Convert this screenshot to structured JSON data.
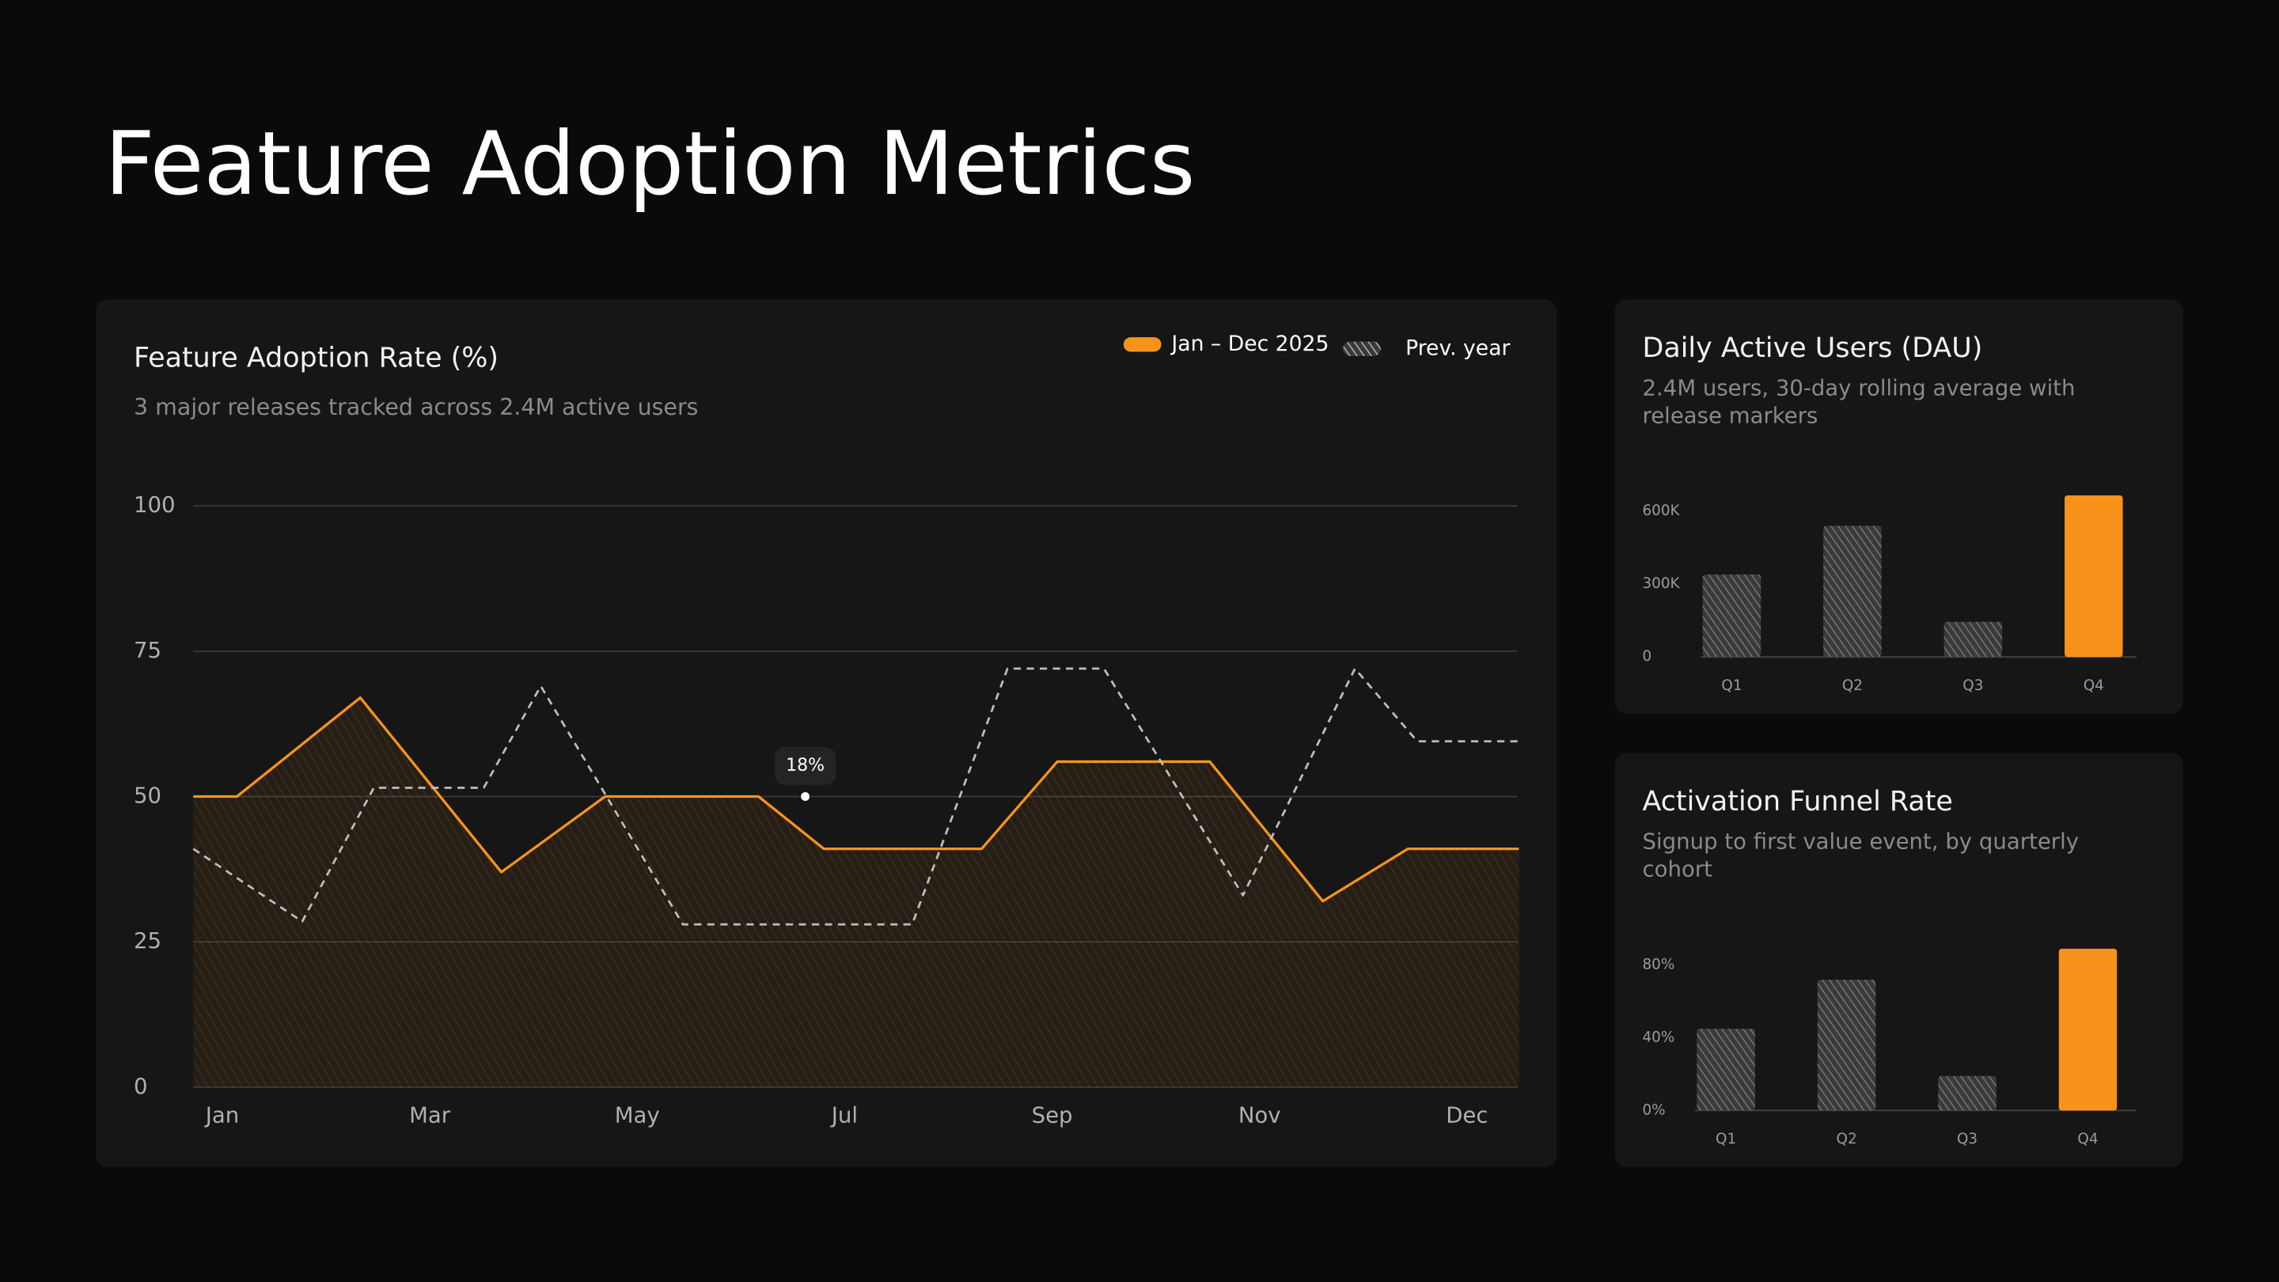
{
  "page_title": "Feature Adoption Metrics",
  "chart_data": [
    {
      "type": "line",
      "title": "Feature Adoption Rate (%)",
      "subtitle": "3 major releases tracked across 2.4M active users",
      "xlim": [
        -0.28,
        12.5
      ],
      "xticks": [
        {
          "value": 0,
          "label": "Jan"
        },
        {
          "value": 2,
          "label": "Mar"
        },
        {
          "value": 4,
          "label": "May"
        },
        {
          "value": 6,
          "label": "Jul"
        },
        {
          "value": 8,
          "label": "Sep"
        },
        {
          "value": 10,
          "label": "Nov"
        },
        {
          "value": 12,
          "label": "Dec"
        }
      ],
      "ylim": [
        0,
        100
      ],
      "yticks": [
        0,
        25,
        50,
        75,
        100
      ],
      "grid": true,
      "legend": "top-right",
      "series": [
        {
          "name": "Jan – Dec 2025",
          "color": "#f7931a",
          "x": [
            -0.28,
            0.14,
            1.33,
            2.69,
            3.69,
            5.17,
            5.8,
            7.32,
            8.05,
            9.52,
            10.61,
            11.43,
            12.5
          ],
          "values": [
            50,
            50,
            67,
            37,
            50,
            50,
            41,
            41,
            56,
            56,
            32,
            41,
            41
          ]
        },
        {
          "name": "Prev. year",
          "color": "#bdbdbd",
          "dashed": true,
          "x": [
            -0.28,
            0.77,
            1.46,
            2.52,
            3.07,
            4.44,
            6.65,
            7.57,
            8.5,
            9.84,
            10.92,
            11.52,
            12.5
          ],
          "values": [
            41,
            28.5,
            51.5,
            51.5,
            69,
            28,
            28,
            72,
            72,
            33,
            72,
            59.5,
            59.5
          ]
        }
      ],
      "annotations": [
        {
          "text": "18%",
          "x": 5.62,
          "y": 50
        }
      ]
    },
    {
      "type": "bar",
      "title": "Daily Active Users (DAU)",
      "subtitle": "2.4M users, 30-day rolling average with release markers",
      "categories": [
        "Q1",
        "Q2",
        "Q3",
        "Q4"
      ],
      "values": [
        340000,
        540000,
        145000,
        665000
      ],
      "colors": [
        "#7a7a7a",
        "#7a7a7a",
        "#7a7a7a",
        "#f7931a"
      ],
      "hatched": [
        true,
        true,
        true,
        false
      ],
      "ylim": [
        0,
        700000
      ],
      "yticks": [
        0,
        {
          "value": 300000,
          "label": "300K"
        },
        {
          "value": 600000,
          "label": "600K"
        }
      ]
    },
    {
      "type": "bar",
      "title": "Activation Funnel Rate",
      "subtitle": "Signup to first value event, by quarterly cohort",
      "categories": [
        "Q1",
        "Q2",
        "Q3",
        "Q4"
      ],
      "values": [
        45,
        72,
        19,
        89
      ],
      "colors": [
        "#7a7a7a",
        "#7a7a7a",
        "#7a7a7a",
        "#f7931a"
      ],
      "hatched": [
        true,
        true,
        true,
        false
      ],
      "ylim": [
        0,
        90
      ],
      "yticks": [
        {
          "value": 0,
          "label": "0%"
        },
        {
          "value": 40,
          "label": "40%"
        },
        {
          "value": 80,
          "label": "80%"
        }
      ]
    }
  ]
}
